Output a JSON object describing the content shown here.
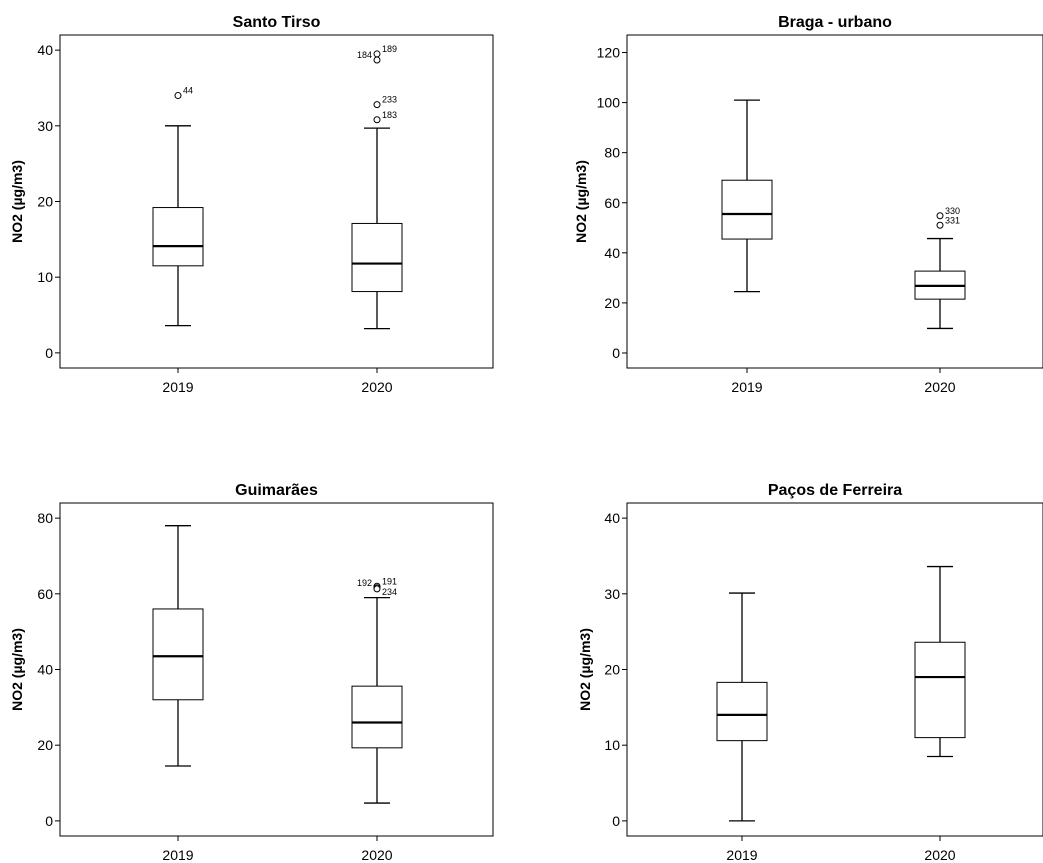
{
  "chart_data": [
    {
      "type": "box",
      "title": "Santo Tirso",
      "ylabel": "NO2 (µg/m3)",
      "xlabel": "",
      "categories": [
        "2019",
        "2020"
      ],
      "ylim": [
        -2,
        42
      ],
      "yticks": [
        0,
        10,
        20,
        30,
        40
      ],
      "boxes": [
        {
          "category": "2019",
          "min": 3.6,
          "q1": 11.5,
          "median": 14.1,
          "q3": 19.2,
          "max": 30.0,
          "outliers": [
            {
              "value": 34.0,
              "label": "44"
            }
          ]
        },
        {
          "category": "2020",
          "min": 3.2,
          "q1": 8.1,
          "median": 11.8,
          "q3": 17.1,
          "max": 29.7,
          "outliers": [
            {
              "value": 39.5,
              "label": "189"
            },
            {
              "value": 38.7,
              "label": "184"
            },
            {
              "value": 32.8,
              "label": "233"
            },
            {
              "value": 30.8,
              "label": "183"
            }
          ]
        }
      ]
    },
    {
      "type": "box",
      "title": "Braga - urbano",
      "ylabel": "NO2 (µg/m3)",
      "xlabel": "",
      "categories": [
        "2019",
        "2020"
      ],
      "ylim": [
        -6,
        127
      ],
      "yticks": [
        0,
        20,
        40,
        60,
        80,
        100,
        120
      ],
      "boxes": [
        {
          "category": "2019",
          "min": 24.5,
          "q1": 45.5,
          "median": 55.5,
          "q3": 69.0,
          "max": 101.0,
          "outliers": []
        },
        {
          "category": "2020",
          "min": 9.8,
          "q1": 21.5,
          "median": 26.8,
          "q3": 32.7,
          "max": 45.7,
          "outliers": [
            {
              "value": 54.8,
              "label": "330"
            },
            {
              "value": 51.0,
              "label": "331"
            }
          ]
        }
      ]
    },
    {
      "type": "box",
      "title": "Guimarães",
      "ylabel": "NO2 (µg/m3)",
      "xlabel": "",
      "categories": [
        "2019",
        "2020"
      ],
      "ylim": [
        -4,
        84
      ],
      "yticks": [
        0,
        20,
        40,
        60,
        80
      ],
      "boxes": [
        {
          "category": "2019",
          "min": 14.5,
          "q1": 32.0,
          "median": 43.5,
          "q3": 56.0,
          "max": 78.0,
          "outliers": []
        },
        {
          "category": "2020",
          "min": 4.7,
          "q1": 19.3,
          "median": 26.0,
          "q3": 35.6,
          "max": 59.0,
          "outliers": [
            {
              "value": 62.0,
              "label": "191"
            },
            {
              "value": 61.6,
              "label": "192"
            },
            {
              "value": 61.3,
              "label": "234"
            }
          ]
        }
      ]
    },
    {
      "type": "box",
      "title": "Paços de Ferreira",
      "ylabel": "NO2 (µg/m3)",
      "xlabel": "",
      "categories": [
        "2019",
        "2020"
      ],
      "ylim": [
        -2,
        42
      ],
      "yticks": [
        0,
        10,
        20,
        30,
        40
      ],
      "boxes": [
        {
          "category": "2019",
          "min": 0.0,
          "q1": 10.6,
          "median": 14.0,
          "q3": 18.3,
          "max": 30.1,
          "outliers": []
        },
        {
          "category": "2020",
          "min": 8.5,
          "q1": 11.0,
          "median": 19.0,
          "q3": 23.6,
          "max": 33.6,
          "outliers": []
        }
      ]
    }
  ]
}
